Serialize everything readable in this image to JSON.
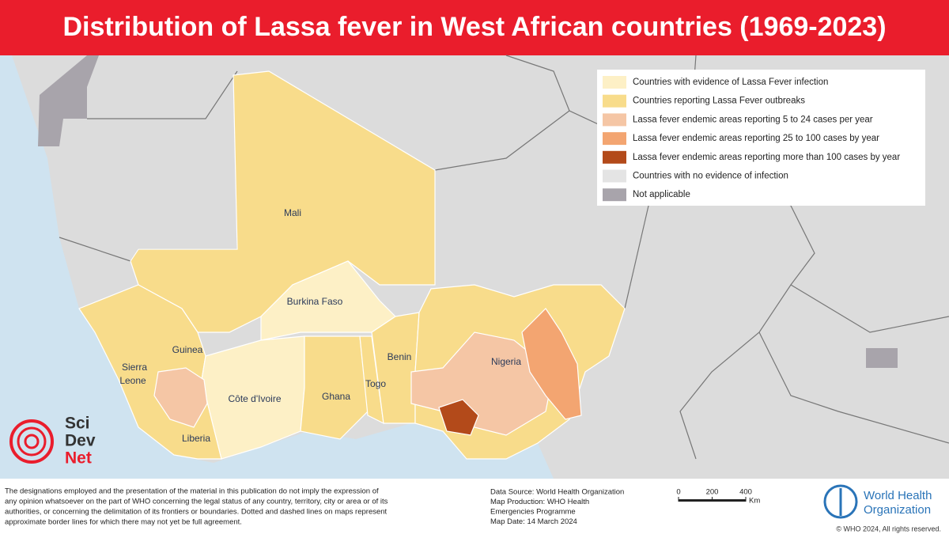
{
  "title": "Distribution of Lassa fever in West African countries (1969-2023)",
  "legend": [
    {
      "label": "Countries with evidence of Lassa Fever infection",
      "color": "#fdf0c6"
    },
    {
      "label": "Countries reporting Lassa Fever outbreaks",
      "color": "#f8dc8b"
    },
    {
      "label": "Lassa fever endemic areas reporting 5 to 24 cases per year",
      "color": "#f5c6a5"
    },
    {
      "label": "Lassa fever endemic areas reporting 25 to 100 cases by year",
      "color": "#f3a571"
    },
    {
      "label": "Lassa fever endemic areas reporting more than 100 cases by year",
      "color": "#b34a1a"
    },
    {
      "label": "Countries with no evidence of infection",
      "color": "#e4e4e4"
    },
    {
      "label": "Not applicable",
      "color": "#a8a4ab"
    }
  ],
  "countries": [
    "Mali",
    "Burkina Faso",
    "Guinea",
    "Sierra",
    "Leone",
    "Côte d'Ivoire",
    "Ghana",
    "Togo",
    "Benin",
    "Nigeria",
    "Liberia"
  ],
  "logo": [
    "Sci",
    "Dev",
    "Net"
  ],
  "disclaimer": [
    "The designations employed and the presentation of the material in this publication do not imply the expression of",
    "any opinion whatsoever on the part of WHO concerning the legal status of any country, territory, city or area or of its",
    "authorities, or concerning the delimitation of its frontiers or boundaries. Dotted and dashed lines on maps represent",
    "approximate border lines for which there may not yet be full agreement."
  ],
  "source": [
    "Data Source: World Health Organization",
    "Map Production: WHO Health",
    "Emergencies Programme",
    "Map Date: 14 March 2024"
  ],
  "scale": {
    "ticks": [
      0,
      200,
      400
    ],
    "unit": "Km"
  },
  "who": {
    "name": [
      "World Health",
      "Organization"
    ],
    "copyright": "© WHO 2024, All rights reserved."
  }
}
